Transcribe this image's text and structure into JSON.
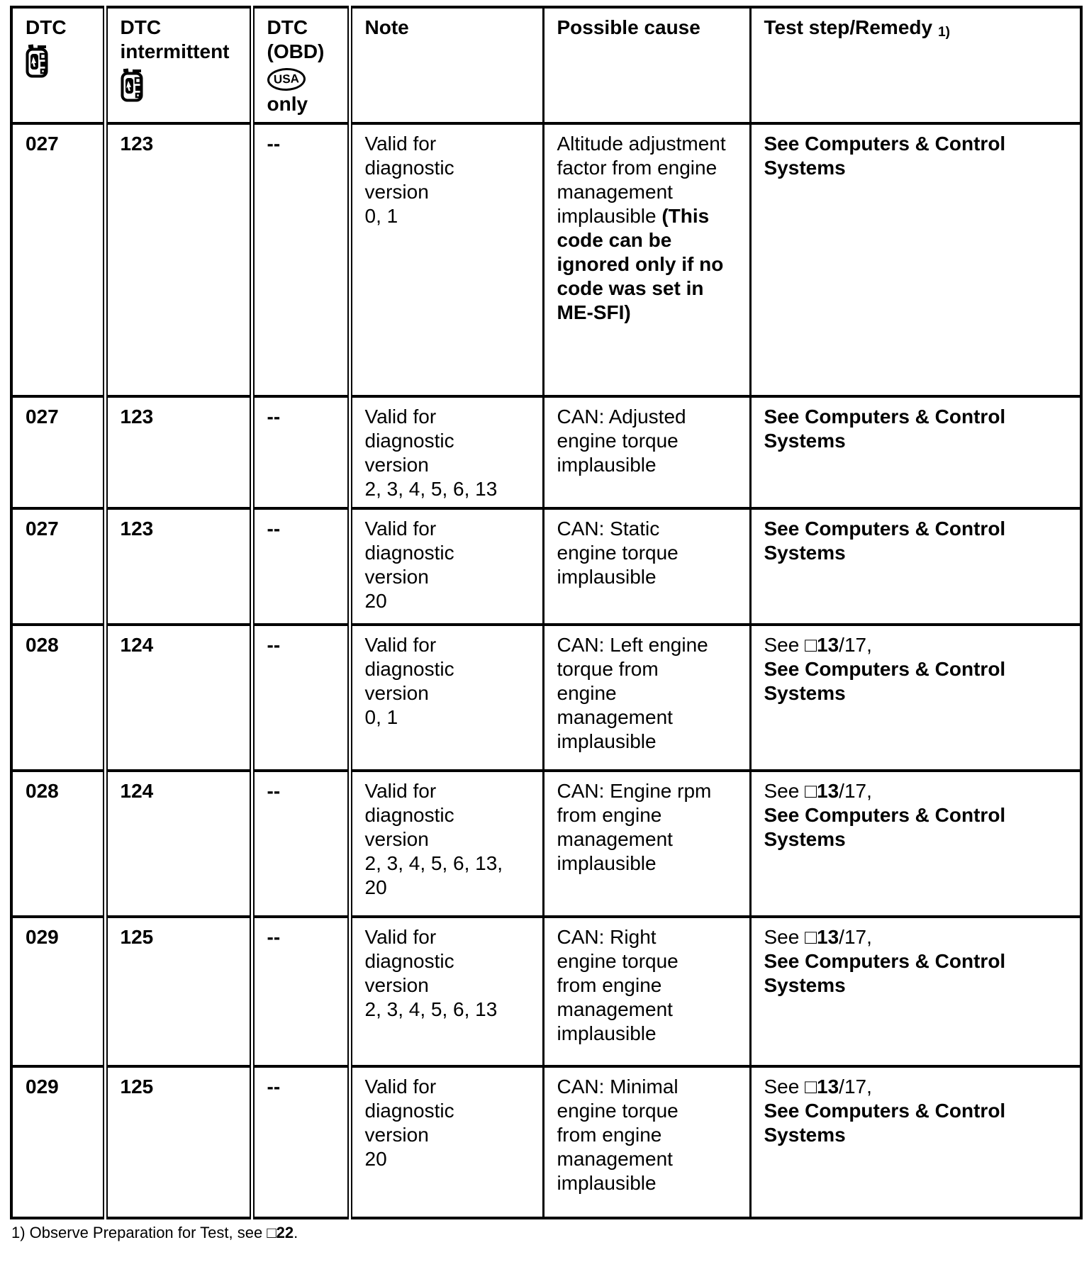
{
  "header": {
    "dtc": "DTC",
    "dtc_intermittent": "DTC intermittent",
    "dtc_obd": "DTC (OBD)",
    "usa_badge": "USA",
    "obd_only": "only",
    "note": "Note",
    "possible_cause": "Possible cause",
    "remedy": "Test step/Remedy",
    "remedy_ref": "1)"
  },
  "icons": {
    "tester": "handheld-diagnostic-tester-icon",
    "usa": "usa-oval-badge"
  },
  "rows": [
    {
      "dtc": "027",
      "dtc_intermittent": "123",
      "dtc_obd": "--",
      "note": "Valid for\ndiagnostic\nversion\n0, 1",
      "cause_segments": [
        {
          "t": "Altitude adjustment factor from engine management implausible ",
          "b": false
        },
        {
          "t": "(This code can be ignored only if no code was set in ME-SFI)",
          "b": true
        }
      ],
      "remedy_segments": [
        {
          "t": "See Computers & Control Systems",
          "b": true
        }
      ]
    },
    {
      "dtc": "027",
      "dtc_intermittent": "123",
      "dtc_obd": "--",
      "note": "Valid for\ndiagnostic\nversion\n2, 3, 4, 5, 6, 13",
      "cause_segments": [
        {
          "t": "CAN: Adjusted\nengine torque\nimplausible",
          "b": false
        }
      ],
      "remedy_segments": [
        {
          "t": "See Computers & Control Systems",
          "b": true
        }
      ]
    },
    {
      "dtc": "027",
      "dtc_intermittent": "123",
      "dtc_obd": "--",
      "note": "Valid for\ndiagnostic\nversion\n20",
      "cause_segments": [
        {
          "t": "CAN: Static\nengine torque\nimplausible",
          "b": false
        }
      ],
      "remedy_segments": [
        {
          "t": "See Computers & Control Systems",
          "b": true
        }
      ]
    },
    {
      "dtc": "028",
      "dtc_intermittent": "124",
      "dtc_obd": "--",
      "note": "Valid for\ndiagnostic\nversion\n0, 1",
      "cause_segments": [
        {
          "t": "CAN: Left engine\ntorque from\nengine\nmanagement\nimplausible",
          "b": false
        }
      ],
      "remedy_segments": [
        {
          "t": "See ",
          "b": false
        },
        {
          "t": "□13",
          "b": true
        },
        {
          "t": "/17,",
          "b": false
        },
        {
          "br": true
        },
        {
          "t": "See Computers & Control Systems",
          "b": true
        }
      ]
    },
    {
      "dtc": "028",
      "dtc_intermittent": "124",
      "dtc_obd": "--",
      "note": "Valid for\ndiagnostic\nversion\n2, 3, 4, 5, 6, 13,\n20",
      "cause_segments": [
        {
          "t": "CAN: Engine rpm\nfrom engine\nmanagement\nimplausible",
          "b": false
        }
      ],
      "remedy_segments": [
        {
          "t": "See ",
          "b": false
        },
        {
          "t": "□13",
          "b": true
        },
        {
          "t": "/17,",
          "b": false
        },
        {
          "br": true
        },
        {
          "t": "See Computers & Control Systems",
          "b": true
        }
      ]
    },
    {
      "dtc": "029",
      "dtc_intermittent": "125",
      "dtc_obd": "--",
      "note": "Valid for\ndiagnostic\nversion\n2, 3, 4, 5, 6, 13",
      "cause_segments": [
        {
          "t": "CAN: Right\nengine torque\nfrom engine\nmanagement\nimplausible",
          "b": false
        }
      ],
      "remedy_segments": [
        {
          "t": "See ",
          "b": false
        },
        {
          "t": "□13",
          "b": true
        },
        {
          "t": "/17,",
          "b": false
        },
        {
          "br": true
        },
        {
          "t": "See Computers & Control Systems",
          "b": true
        }
      ]
    },
    {
      "dtc": "029",
      "dtc_intermittent": "125",
      "dtc_obd": "--",
      "note": "Valid for\ndiagnostic\nversion\n20",
      "cause_segments": [
        {
          "t": "CAN: Minimal\nengine torque\nfrom engine\nmanagement\nimplausible",
          "b": false
        }
      ],
      "remedy_segments": [
        {
          "t": "See ",
          "b": false
        },
        {
          "t": "□13",
          "b": true
        },
        {
          "t": "/17,",
          "b": false
        },
        {
          "br": true
        },
        {
          "t": "See Computers & Control Systems",
          "b": true
        }
      ]
    }
  ],
  "footnote_segments": [
    {
      "t": "1) Observe Preparation for Test, see ",
      "b": false
    },
    {
      "t": "□22",
      "b": true
    },
    {
      "t": ".",
      "b": false
    }
  ]
}
